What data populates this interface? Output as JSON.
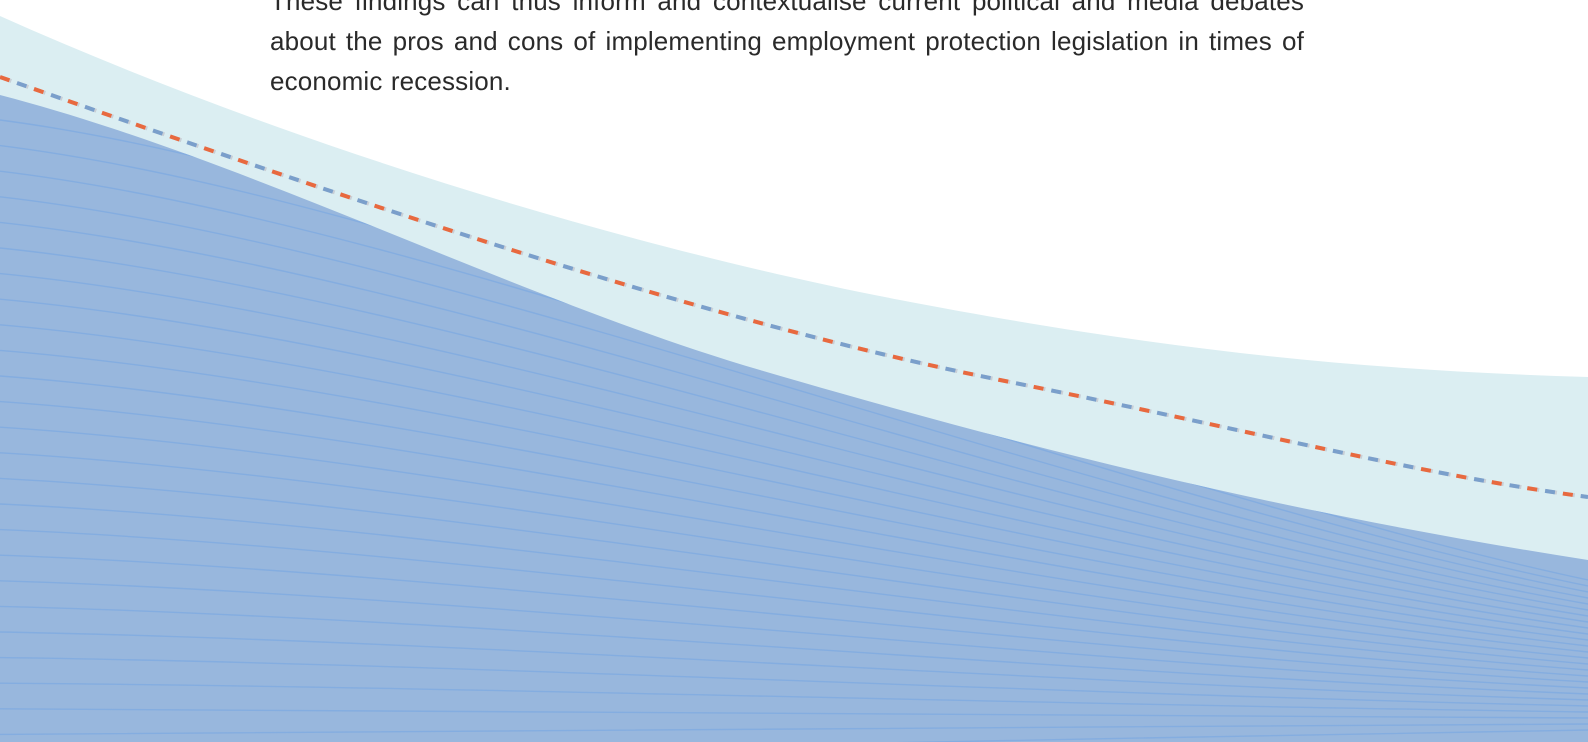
{
  "body": {
    "paragraph": "These findings can thus inform and contextualise current political and media debates about the pros and cons of implementing employment protection legislation in times of economic recession."
  },
  "decoration": {
    "band_color": "#dbeef2",
    "wave_fill_color": "#98b7dd",
    "wave_line_color": "#7eaae0",
    "dashed_line_colors": [
      "#e8693f",
      "#7a9fcb",
      "#c9cfd6"
    ]
  }
}
